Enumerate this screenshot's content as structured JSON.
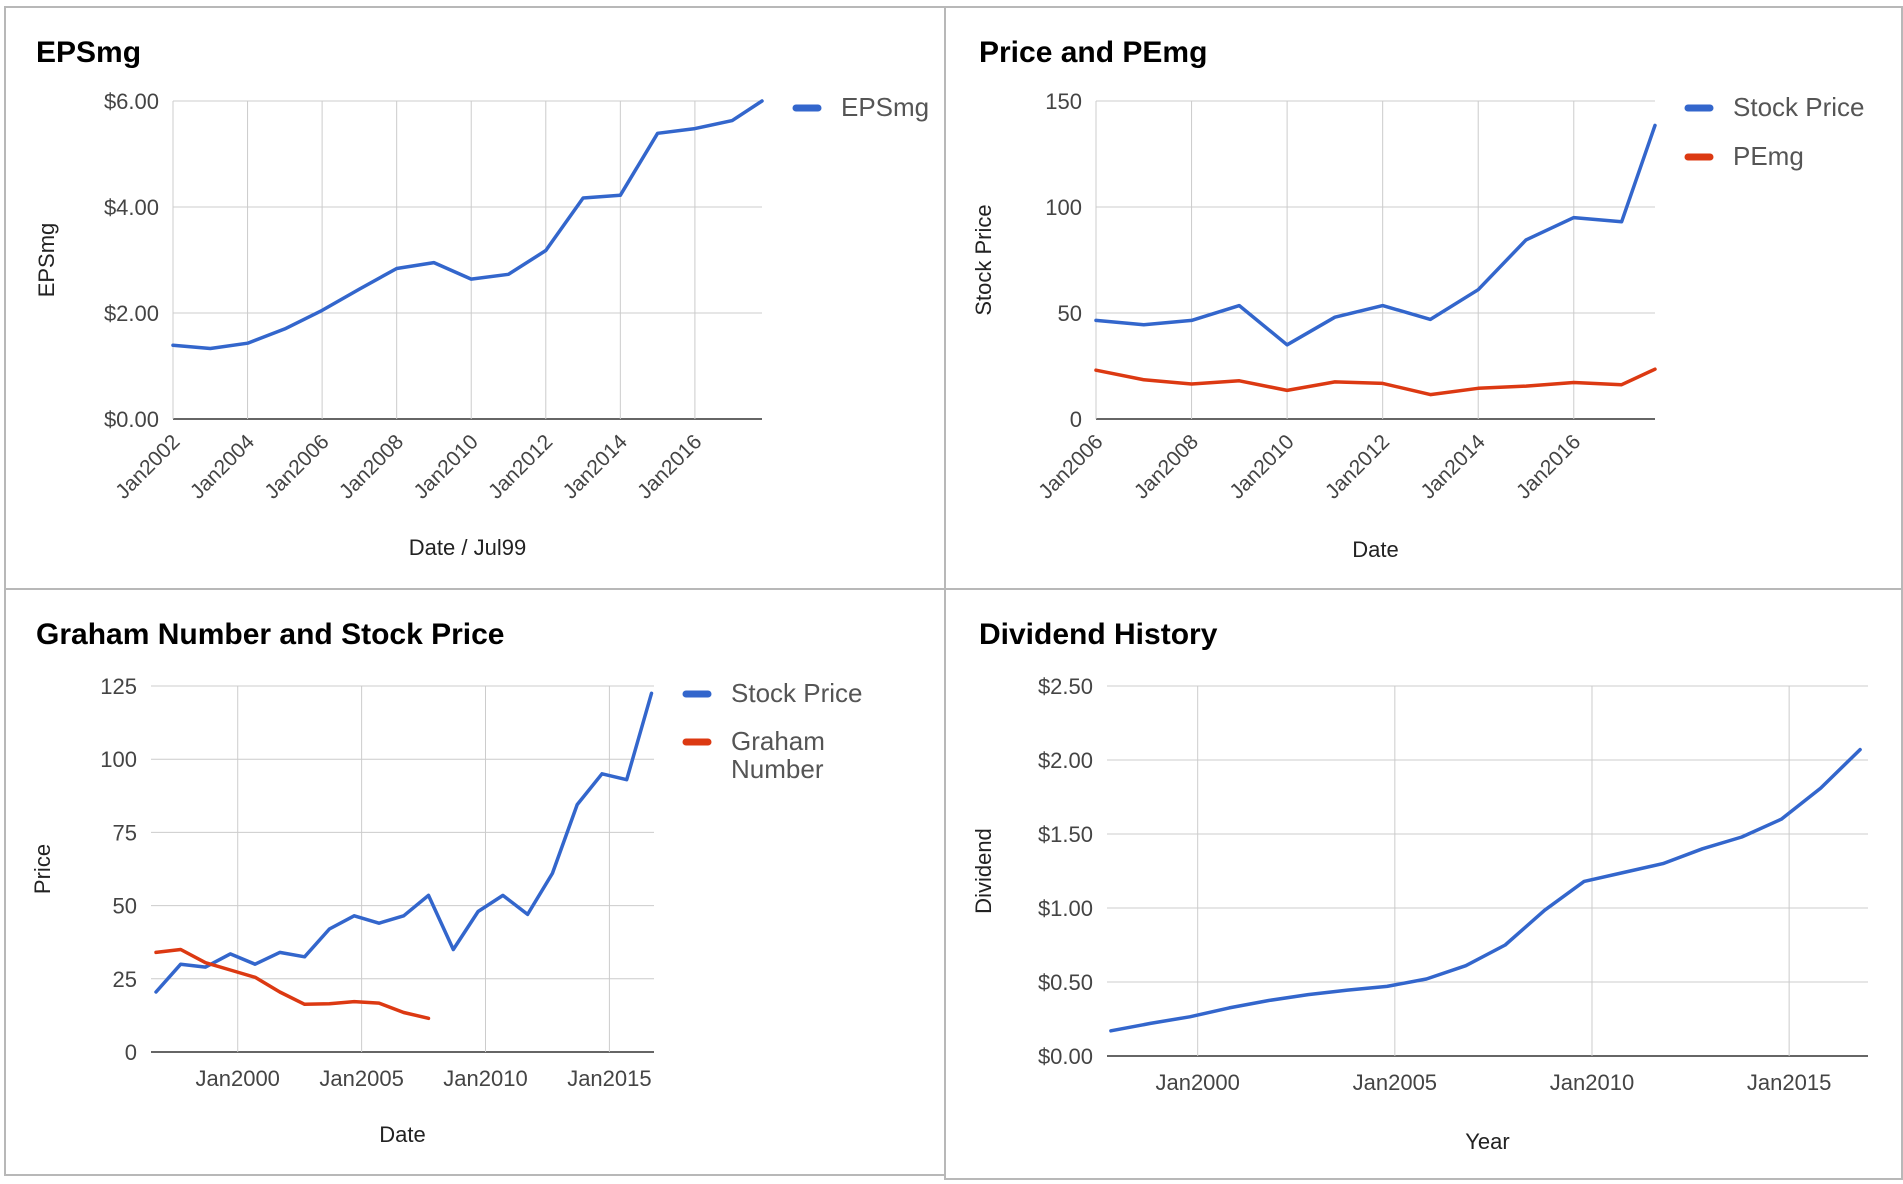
{
  "chart_data": [
    {
      "id": "eps",
      "type": "line",
      "title": "EPSmg",
      "xlabel": "Date / Jul99",
      "ylabel": "EPSmg",
      "x": [
        2002,
        2003,
        2004,
        2005,
        2006,
        2007,
        2008,
        2009,
        2010,
        2011,
        2012,
        2013,
        2014,
        2015,
        2016,
        2017,
        2017.8
      ],
      "series": [
        {
          "name": "EPSmg",
          "color": "#3366cc",
          "values": [
            1.39,
            1.33,
            1.43,
            1.7,
            2.05,
            2.45,
            2.84,
            2.95,
            2.64,
            2.73,
            3.18,
            4.17,
            4.22,
            5.39,
            5.48,
            5.63,
            6.0
          ]
        }
      ],
      "xlim": [
        2002,
        2017.8
      ],
      "ylim": [
        0,
        6
      ],
      "yticks": [
        0,
        2,
        4,
        6
      ],
      "ytick_labels": [
        "$0.00",
        "$2.00",
        "$4.00",
        "$6.00"
      ],
      "xticks": [
        2002,
        2004,
        2006,
        2008,
        2010,
        2012,
        2014,
        2016
      ],
      "xtick_labels": [
        "Jan2002",
        "Jan2004",
        "Jan2006",
        "Jan2008",
        "Jan2010",
        "Jan2012",
        "Jan2014",
        "Jan2016"
      ],
      "legend": "right",
      "grid": true
    },
    {
      "id": "pe",
      "type": "line",
      "title": "Price and PEmg",
      "xlabel": "Date",
      "ylabel": "Stock Price",
      "x": [
        2006,
        2007,
        2008,
        2009,
        2010,
        2011,
        2012,
        2013,
        2014,
        2015,
        2016,
        2017,
        2017.7
      ],
      "series": [
        {
          "name": "Stock Price",
          "color": "#3366cc",
          "values": [
            46.5,
            44.5,
            46.5,
            53.5,
            35,
            48,
            53.5,
            47,
            61,
            84.5,
            95,
            93,
            138.5
          ]
        },
        {
          "name": "PEmg",
          "color": "#dc3912",
          "values": [
            23,
            18.5,
            16.5,
            18,
            13.5,
            17.5,
            16.8,
            11.5,
            14.5,
            15.5,
            17.2,
            16.2,
            23.5
          ]
        }
      ],
      "xlim": [
        2006,
        2017.7
      ],
      "ylim": [
        0,
        150
      ],
      "yticks": [
        0,
        50,
        100,
        150
      ],
      "ytick_labels": [
        "0",
        "50",
        "100",
        "150"
      ],
      "xticks": [
        2006,
        2008,
        2010,
        2012,
        2014,
        2016
      ],
      "xtick_labels": [
        "Jan2006",
        "Jan2008",
        "Jan2010",
        "Jan2012",
        "Jan2014",
        "Jan2016"
      ],
      "legend": "right",
      "grid": true
    },
    {
      "id": "graham",
      "type": "line",
      "title": "Graham Number and Stock Price",
      "xlabel": "Date",
      "ylabel": "Price",
      "series": [
        {
          "name": "Stock Price",
          "color": "#3366cc",
          "x": [
            1996.7,
            1997.7,
            1998.7,
            1999.7,
            2000.7,
            2001.7,
            2002.7,
            2003.7,
            2004.7,
            2005.7,
            2006.7,
            2007.7,
            2008.7,
            2009.7,
            2010.7,
            2011.7,
            2012.7,
            2013.7,
            2014.7,
            2015.7,
            2016.7
          ],
          "values": [
            20.5,
            30,
            29,
            33.5,
            30,
            34,
            32.5,
            42,
            46.5,
            44,
            46.5,
            53.5,
            35,
            48,
            53.5,
            47,
            61,
            84.5,
            95,
            93,
            122.5
          ]
        },
        {
          "name": "Graham Number",
          "color": "#dc3912",
          "x": [
            1996.7,
            1997.7,
            1998.7,
            1999.7,
            2000.7,
            2001.7,
            2002.7,
            2003.7,
            2004.7,
            2005.7,
            2006.7,
            2007.7
          ],
          "values": [
            34,
            35,
            30.5,
            28,
            25.5,
            20.5,
            16.3,
            16.5,
            17.2,
            16.7,
            13.5,
            11.5
          ]
        }
      ],
      "xlim": [
        1996.5,
        2016.8
      ],
      "ylim": [
        0,
        125
      ],
      "yticks": [
        0,
        25,
        50,
        75,
        100,
        125
      ],
      "ytick_labels": [
        "0",
        "25",
        "50",
        "75",
        "100",
        "125"
      ],
      "xticks": [
        2000,
        2005,
        2010,
        2015
      ],
      "xtick_labels": [
        "Jan2000",
        "Jan2005",
        "Jan2010",
        "Jan2015"
      ],
      "legend": "right",
      "grid": true
    },
    {
      "id": "dividend",
      "type": "line",
      "title": "Dividend History",
      "xlabel": "Year",
      "ylabel": "Dividend",
      "x": [
        1997.8,
        1998.8,
        1999.8,
        2000.8,
        2001.8,
        2002.8,
        2003.8,
        2004.8,
        2005.8,
        2006.8,
        2007.8,
        2008.8,
        2009.8,
        2010.8,
        2011.8,
        2012.8,
        2013.8,
        2014.8,
        2015.8,
        2016.8
      ],
      "series": [
        {
          "name": "Dividend",
          "color": "#3366cc",
          "values": [
            0.17,
            0.22,
            0.265,
            0.325,
            0.375,
            0.415,
            0.445,
            0.47,
            0.52,
            0.61,
            0.75,
            0.985,
            1.18,
            1.24,
            1.3,
            1.4,
            1.48,
            1.6,
            1.81,
            2.07
          ]
        }
      ],
      "xlim": [
        1997.7,
        2017.0
      ],
      "ylim": [
        0,
        2.5
      ],
      "yticks": [
        0,
        0.5,
        1,
        1.5,
        2,
        2.5
      ],
      "ytick_labels": [
        "$0.00",
        "$0.50",
        "$1.00",
        "$1.50",
        "$2.00",
        "$2.50"
      ],
      "xticks": [
        2000,
        2005,
        2010,
        2015
      ],
      "xtick_labels": [
        "Jan2000",
        "Jan2005",
        "Jan2010",
        "Jan2015"
      ],
      "legend": "none",
      "grid": true
    }
  ]
}
